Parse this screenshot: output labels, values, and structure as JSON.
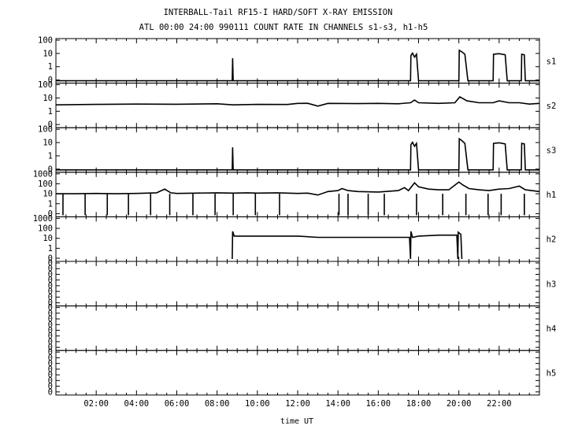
{
  "chart_data": {
    "type": "line",
    "title": "INTERBALL-Tail RF15-I HARD/SOFT X-RAY EMISSION",
    "subtitle": "ATL 00:00 24:00 990111  COUNT RATE IN CHANNELS s1-s3, h1-h5",
    "xlabel": "time UT",
    "xlim": [
      0,
      24
    ],
    "x_tick_labels": [
      "02:00",
      "04:00",
      "06:00",
      "08:00",
      "10:00",
      "12:00",
      "14:00",
      "16:00",
      "18:00",
      "20:00",
      "22:00"
    ],
    "y_scale": "log",
    "panels": [
      {
        "name": "s1",
        "ylim": [
          0.1,
          100
        ],
        "y_tick_labels": [
          "100",
          "10",
          "1",
          "0"
        ],
        "series": [
          [
            [
              0.0,
              0.1
            ],
            [
              8.75,
              0.1
            ],
            [
              8.77,
              5
            ],
            [
              8.8,
              0.1
            ],
            [
              17.6,
              0.1
            ],
            [
              17.62,
              8
            ],
            [
              17.7,
              12
            ],
            [
              17.8,
              6
            ],
            [
              17.9,
              10
            ],
            [
              18.0,
              0.1
            ],
            [
              20.0,
              0.1
            ],
            [
              20.02,
              20
            ],
            [
              20.15,
              15
            ],
            [
              20.3,
              10
            ],
            [
              20.45,
              0.1
            ],
            [
              21.7,
              0.1
            ],
            [
              21.72,
              10
            ],
            [
              22.0,
              11
            ],
            [
              22.3,
              9
            ],
            [
              22.4,
              0.1
            ],
            [
              23.1,
              0.1
            ],
            [
              23.12,
              10
            ],
            [
              23.25,
              9
            ],
            [
              23.3,
              0.1
            ],
            [
              24.0,
              0.1
            ]
          ]
        ]
      },
      {
        "name": "s2",
        "ylim": [
          0.1,
          100
        ],
        "y_tick_labels": [
          "100",
          "10",
          "1",
          "0"
        ],
        "series": [
          [
            [
              0.0,
              3.5
            ],
            [
              2.0,
              3.8
            ],
            [
              4.0,
              4.0
            ],
            [
              6.0,
              3.9
            ],
            [
              8.0,
              4.2
            ],
            [
              8.8,
              3.5
            ],
            [
              10.0,
              3.8
            ],
            [
              11.5,
              3.7
            ],
            [
              12.0,
              4.5
            ],
            [
              12.5,
              4.6
            ],
            [
              13.0,
              2.8
            ],
            [
              13.5,
              4.5
            ],
            [
              15.0,
              4.3
            ],
            [
              16.0,
              4.5
            ],
            [
              17.0,
              4.2
            ],
            [
              17.6,
              5
            ],
            [
              17.8,
              8
            ],
            [
              18.0,
              5
            ],
            [
              19.0,
              4.5
            ],
            [
              19.8,
              5
            ],
            [
              20.05,
              14
            ],
            [
              20.4,
              7
            ],
            [
              21.0,
              5
            ],
            [
              21.7,
              5
            ],
            [
              22.0,
              7
            ],
            [
              22.5,
              5
            ],
            [
              23.0,
              5
            ],
            [
              23.5,
              4
            ],
            [
              24.0,
              4.5
            ]
          ]
        ]
      },
      {
        "name": "s3",
        "ylim": [
          0.1,
          100
        ],
        "y_tick_labels": [
          "100",
          "10",
          "1",
          "0"
        ],
        "series": [
          [
            [
              0.0,
              0.1
            ],
            [
              8.75,
              0.1
            ],
            [
              8.77,
              5
            ],
            [
              8.8,
              0.1
            ],
            [
              17.6,
              0.1
            ],
            [
              17.62,
              8
            ],
            [
              17.7,
              12
            ],
            [
              17.8,
              6
            ],
            [
              17.9,
              10
            ],
            [
              18.0,
              0.1
            ],
            [
              20.0,
              0.1
            ],
            [
              20.02,
              22
            ],
            [
              20.15,
              16
            ],
            [
              20.3,
              10
            ],
            [
              20.45,
              0.1
            ],
            [
              21.7,
              0.1
            ],
            [
              21.72,
              10
            ],
            [
              22.0,
              11
            ],
            [
              22.3,
              9
            ],
            [
              22.4,
              0.1
            ],
            [
              23.1,
              0.1
            ],
            [
              23.12,
              10
            ],
            [
              23.25,
              9
            ],
            [
              23.3,
              0.1
            ],
            [
              24.0,
              0.1
            ]
          ]
        ]
      },
      {
        "name": "h1",
        "ylim": [
          0.1,
          1000
        ],
        "y_tick_labels": [
          "1000",
          "100",
          "10",
          "1",
          "0"
        ],
        "series": [
          [
            [
              0.0,
              12
            ],
            [
              1.0,
              12
            ],
            [
              2.0,
              13
            ],
            [
              3.0,
              12
            ],
            [
              4.0,
              13
            ],
            [
              5.0,
              15
            ],
            [
              5.4,
              35
            ],
            [
              5.7,
              15
            ],
            [
              6.0,
              13
            ],
            [
              7.0,
              14
            ],
            [
              8.0,
              15
            ],
            [
              8.8,
              14
            ],
            [
              9.5,
              15
            ],
            [
              10.0,
              14
            ],
            [
              11.0,
              15
            ],
            [
              12.0,
              13
            ],
            [
              12.5,
              14
            ],
            [
              13.0,
              9
            ],
            [
              13.5,
              20
            ],
            [
              14.0,
              25
            ],
            [
              14.2,
              40
            ],
            [
              14.5,
              25
            ],
            [
              15.0,
              20
            ],
            [
              16.0,
              18
            ],
            [
              17.0,
              25
            ],
            [
              17.3,
              50
            ],
            [
              17.5,
              25
            ],
            [
              17.8,
              150
            ],
            [
              18.0,
              60
            ],
            [
              18.5,
              35
            ],
            [
              19.0,
              30
            ],
            [
              19.5,
              30
            ],
            [
              20.0,
              180
            ],
            [
              20.2,
              90
            ],
            [
              20.5,
              40
            ],
            [
              21.0,
              30
            ],
            [
              21.5,
              25
            ],
            [
              22.0,
              35
            ],
            [
              22.5,
              40
            ],
            [
              23.0,
              70
            ],
            [
              23.3,
              30
            ],
            [
              24.0,
              20
            ]
          ]
        ]
      },
      {
        "name": "h2",
        "ylim": [
          0.1,
          1000
        ],
        "y_tick_labels": [
          "1000",
          "100",
          "10",
          "1",
          "0"
        ],
        "series": [
          [
            [
              8.75,
              0.1
            ],
            [
              8.77,
              60
            ],
            [
              8.85,
              20
            ],
            [
              12.0,
              20
            ],
            [
              13.0,
              15
            ],
            [
              17.55,
              15
            ],
            [
              17.6,
              0.1
            ],
            [
              17.62,
              60
            ],
            [
              17.7,
              15
            ],
            [
              18.0,
              20
            ],
            [
              19.0,
              25
            ],
            [
              19.9,
              25
            ],
            [
              19.95,
              0.1
            ],
            [
              19.97,
              50
            ],
            [
              20.1,
              30
            ],
            [
              20.15,
              0.1
            ]
          ]
        ]
      },
      {
        "name": "h3",
        "ylim": [
          0.1,
          1000
        ],
        "y_tick_labels": [
          "0",
          "0",
          "0",
          "0",
          "0",
          "0",
          "0",
          "0"
        ],
        "series": []
      },
      {
        "name": "h4",
        "ylim": [
          0.1,
          1000
        ],
        "y_tick_labels": [
          "0",
          "0",
          "0",
          "0",
          "0",
          "0",
          "0",
          "0"
        ],
        "series": []
      },
      {
        "name": "h5",
        "ylim": [
          0.1,
          1000
        ],
        "y_tick_labels": [
          "0",
          "0",
          "0",
          "0",
          "0",
          "0",
          "0",
          "0"
        ],
        "series": []
      }
    ],
    "h1_dropouts_hours": [
      0.35,
      1.45,
      2.55,
      3.6,
      4.7,
      5.65,
      6.8,
      7.9,
      8.8,
      9.9,
      11.1,
      14.05,
      14.5,
      15.5,
      16.3,
      17.9,
      19.2,
      20.35,
      21.45,
      22.1,
      23.25
    ]
  }
}
